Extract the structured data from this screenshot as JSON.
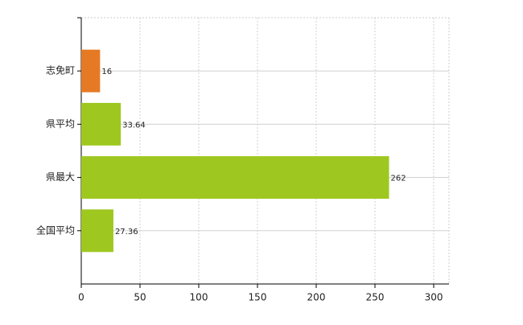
{
  "chart_data": {
    "type": "bar",
    "orientation": "horizontal",
    "categories": [
      "志免町",
      "県平均",
      "県最大",
      "全国平均"
    ],
    "values": [
      16,
      33.64,
      262,
      27.36
    ],
    "colors": [
      "#e67a24",
      "#9ec820",
      "#9ec820",
      "#9ec820"
    ],
    "xlim": [
      0,
      313
    ],
    "xticks": [
      0,
      50,
      100,
      150,
      200,
      250,
      300
    ],
    "grid": true
  }
}
